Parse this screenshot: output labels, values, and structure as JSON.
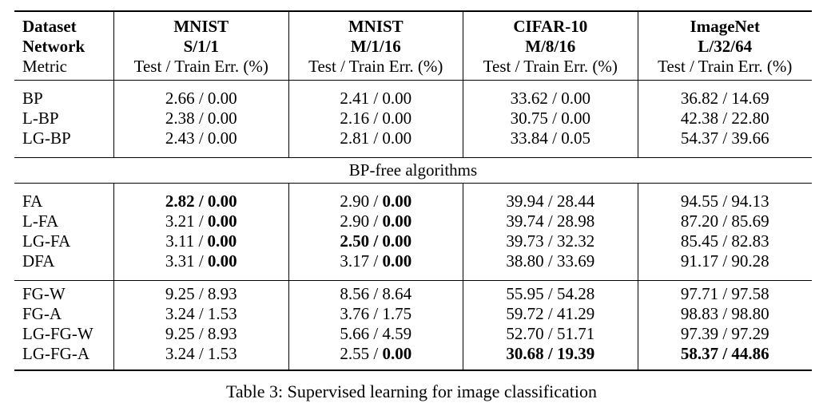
{
  "table": {
    "header": [
      [
        "Dataset",
        "MNIST",
        "MNIST",
        "CIFAR-10",
        "ImageNet"
      ],
      [
        "Network",
        "S/1/1",
        "M/1/16",
        "M/8/16",
        "L/32/64"
      ],
      [
        "Metric",
        "Test / Train Err. (%)",
        "Test / Train Err. (%)",
        "Test / Train Err. (%)",
        "Test / Train Err. (%)"
      ]
    ],
    "header_bold": [
      true,
      true,
      false
    ],
    "sections": [
      {
        "rows": [
          {
            "label": "BP",
            "cells": [
              "2.66 / 0.00",
              "2.41 / 0.00",
              "33.62 / 0.00",
              "36.82 / 14.69"
            ],
            "bold": [
              "none",
              "none",
              "none",
              "none"
            ]
          },
          {
            "label": "L-BP",
            "cells": [
              "2.38 / 0.00",
              "2.16 / 0.00",
              "30.75 / 0.00",
              "42.38 / 22.80"
            ],
            "bold": [
              "none",
              "none",
              "none",
              "none"
            ]
          },
          {
            "label": "LG-BP",
            "cells": [
              "2.43 / 0.00",
              "2.81 / 0.00",
              "33.84 / 0.05",
              "54.37 / 39.66"
            ],
            "bold": [
              "none",
              "none",
              "none",
              "none"
            ]
          }
        ]
      },
      {
        "title": "BP-free algorithms",
        "rows": [
          {
            "label": "FA",
            "cells": [
              "2.82 / 0.00",
              "2.90 / 0.00",
              "39.94 / 28.44",
              "94.55 / 94.13"
            ],
            "bold": [
              "all",
              "train",
              "none",
              "none"
            ]
          },
          {
            "label": "L-FA",
            "cells": [
              "3.21 / 0.00",
              "2.90 / 0.00",
              "39.74 / 28.98",
              "87.20 / 85.69"
            ],
            "bold": [
              "train",
              "train",
              "none",
              "none"
            ]
          },
          {
            "label": "LG-FA",
            "cells": [
              "3.11 / 0.00",
              "2.50 / 0.00",
              "39.73 / 32.32",
              "85.45 / 82.83"
            ],
            "bold": [
              "train",
              "all",
              "none",
              "none"
            ]
          },
          {
            "label": "DFA",
            "cells": [
              "3.31 / 0.00",
              "3.17 / 0.00",
              "38.80 / 33.69",
              "91.17 / 90.28"
            ],
            "bold": [
              "train",
              "train",
              "none",
              "none"
            ]
          }
        ]
      },
      {
        "rows": [
          {
            "label": "FG-W",
            "cells": [
              "9.25 / 8.93",
              "8.56 / 8.64",
              "55.95 / 54.28",
              "97.71 / 97.58"
            ],
            "bold": [
              "none",
              "none",
              "none",
              "none"
            ]
          },
          {
            "label": "FG-A",
            "cells": [
              "3.24 / 1.53",
              "3.76 / 1.75",
              "59.72 / 41.29",
              "98.83 / 98.80"
            ],
            "bold": [
              "none",
              "none",
              "none",
              "none"
            ]
          },
          {
            "label": "LG-FG-W",
            "cells": [
              "9.25 / 8.93",
              "5.66 / 4.59",
              "52.70 / 51.71",
              "97.39 / 97.29"
            ],
            "bold": [
              "none",
              "none",
              "none",
              "none"
            ]
          },
          {
            "label": "LG-FG-A",
            "cells": [
              "3.24 / 1.53",
              "2.55 / 0.00",
              "30.68 / 19.39",
              "58.37 / 44.86"
            ],
            "bold": [
              "none",
              "train",
              "all",
              "all"
            ]
          }
        ]
      }
    ],
    "caption": "Table 3: Supervised learning for image classification"
  }
}
